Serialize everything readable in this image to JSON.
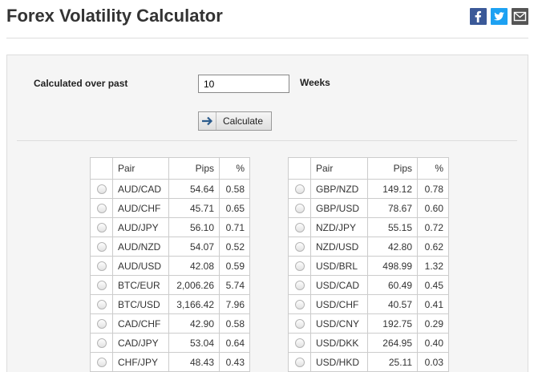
{
  "page": {
    "title": "Forex Volatility Calculator"
  },
  "social": {
    "facebook": "facebook-icon",
    "twitter": "twitter-icon",
    "email": "email-icon"
  },
  "form": {
    "past_label": "Calculated over past",
    "weeks_value": "10",
    "weeks_label": "Weeks",
    "calculate_label": "Calculate"
  },
  "table": {
    "headers": {
      "pair": "Pair",
      "pips": "Pips",
      "pct": "%"
    },
    "left_rows": [
      {
        "pair": "AUD/CAD",
        "pips": "54.64",
        "pct": "0.58"
      },
      {
        "pair": "AUD/CHF",
        "pips": "45.71",
        "pct": "0.65"
      },
      {
        "pair": "AUD/JPY",
        "pips": "56.10",
        "pct": "0.71"
      },
      {
        "pair": "AUD/NZD",
        "pips": "54.07",
        "pct": "0.52"
      },
      {
        "pair": "AUD/USD",
        "pips": "42.08",
        "pct": "0.59"
      },
      {
        "pair": "BTC/EUR",
        "pips": "2,006.26",
        "pct": "5.74"
      },
      {
        "pair": "BTC/USD",
        "pips": "3,166.42",
        "pct": "7.96"
      },
      {
        "pair": "CAD/CHF",
        "pips": "42.90",
        "pct": "0.58"
      },
      {
        "pair": "CAD/JPY",
        "pips": "53.04",
        "pct": "0.64"
      },
      {
        "pair": "CHF/JPY",
        "pips": "48.43",
        "pct": "0.43"
      }
    ],
    "right_rows": [
      {
        "pair": "GBP/NZD",
        "pips": "149.12",
        "pct": "0.78"
      },
      {
        "pair": "GBP/USD",
        "pips": "78.67",
        "pct": "0.60"
      },
      {
        "pair": "NZD/JPY",
        "pips": "55.15",
        "pct": "0.72"
      },
      {
        "pair": "NZD/USD",
        "pips": "42.80",
        "pct": "0.62"
      },
      {
        "pair": "USD/BRL",
        "pips": "498.99",
        "pct": "1.32"
      },
      {
        "pair": "USD/CAD",
        "pips": "60.49",
        "pct": "0.45"
      },
      {
        "pair": "USD/CHF",
        "pips": "40.57",
        "pct": "0.41"
      },
      {
        "pair": "USD/CNY",
        "pips": "192.75",
        "pct": "0.29"
      },
      {
        "pair": "USD/DKK",
        "pips": "264.95",
        "pct": "0.40"
      },
      {
        "pair": "USD/HKD",
        "pips": "25.11",
        "pct": "0.03"
      }
    ]
  }
}
